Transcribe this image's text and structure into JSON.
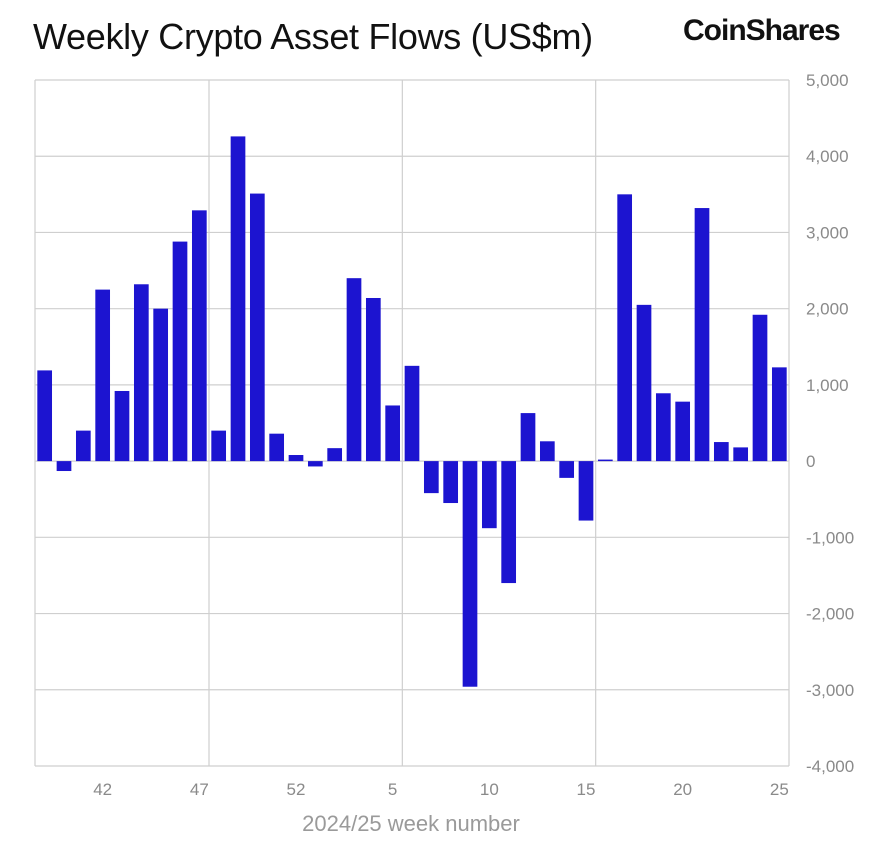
{
  "header": {
    "title": "Weekly Crypto Asset Flows (US$m)",
    "logo_text": "CoinShares"
  },
  "chart_data": {
    "type": "bar",
    "title": "Weekly Crypto Asset Flows (US$m)",
    "xlabel": "2024/25 week number",
    "ylabel": "",
    "ylim": [
      -4000,
      5000
    ],
    "yticks": [
      5000,
      4000,
      3000,
      2000,
      1000,
      0,
      -1000,
      -2000,
      -3000,
      -4000
    ],
    "ytick_labels": [
      "5,000",
      "4,000",
      "3,000",
      "2,000",
      "1,000",
      "0",
      "-1,000",
      "-2,000",
      "-3,000",
      "-4,000"
    ],
    "y_axis_position": "right",
    "grid": true,
    "bar_color": "#1c14d0",
    "categories": [
      39,
      40,
      41,
      42,
      43,
      44,
      45,
      46,
      47,
      48,
      49,
      50,
      51,
      52,
      1,
      2,
      3,
      4,
      5,
      6,
      7,
      8,
      9,
      10,
      11,
      12,
      13,
      14,
      15,
      16,
      17,
      18,
      19,
      20,
      21,
      22,
      23,
      24,
      25
    ],
    "values": [
      1190,
      -130,
      400,
      2250,
      920,
      2320,
      2000,
      2880,
      3290,
      400,
      4260,
      3510,
      360,
      80,
      -70,
      170,
      2400,
      2140,
      730,
      1250,
      -420,
      -550,
      -2960,
      -880,
      -1600,
      630,
      260,
      -220,
      -780,
      20,
      3500,
      2050,
      890,
      780,
      3320,
      250,
      180,
      1920,
      1230
    ],
    "xtick_labels": [
      {
        "category": 42,
        "label": "42"
      },
      {
        "category": 47,
        "label": "47"
      },
      {
        "category": 52,
        "label": "52"
      },
      {
        "category": 5,
        "label": "5"
      },
      {
        "category": 10,
        "label": "10"
      },
      {
        "category": 15,
        "label": "15"
      },
      {
        "category": 20,
        "label": "20"
      },
      {
        "category": 25,
        "label": "25"
      }
    ],
    "vertical_gridlines_after_categories": [
      47,
      5,
      15
    ]
  }
}
